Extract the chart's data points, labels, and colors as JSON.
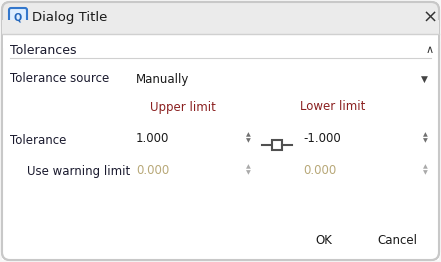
{
  "title": "Dialog Title",
  "section_title": "Tolerances",
  "tolerance_source_label": "Tolerance source",
  "tolerance_source_value": "Manually",
  "upper_limit_label": "Upper limit",
  "lower_limit_label": "Lower limit",
  "tolerance_label": "Tolerance",
  "upper_value": "1.000",
  "lower_value": "-1.000",
  "warning_label": "Use warning limit",
  "warning_upper": "0.000",
  "warning_lower": "0.000",
  "ok_label": "OK",
  "cancel_label": "Cancel",
  "dialog_bg": "#f7f7f7",
  "title_bar_bg": "#ebebeb",
  "body_bg": "#ffffff",
  "input_bg": "#f0f4f8",
  "input_bg_active": "#f0f4f8",
  "input_border": "#c5d0da",
  "dropdown_bg": "#f0f4f8",
  "checkbox_bg": "#6a7a8a",
  "text_color": "#1a1a1a",
  "label_color": "#1a1a2e",
  "section_color": "#1a1a2e",
  "limit_label_color": "#8b2020",
  "disabled_text": "#b8a878",
  "disabled_input_bg": "#f5f5f5",
  "button_bg": "#f0f0f0",
  "button_border": "#b0b0b0",
  "border_color": "#c8c8c8",
  "separator_color": "#d0d0d0",
  "spinner_color": "#707070",
  "link_color": "#505050"
}
